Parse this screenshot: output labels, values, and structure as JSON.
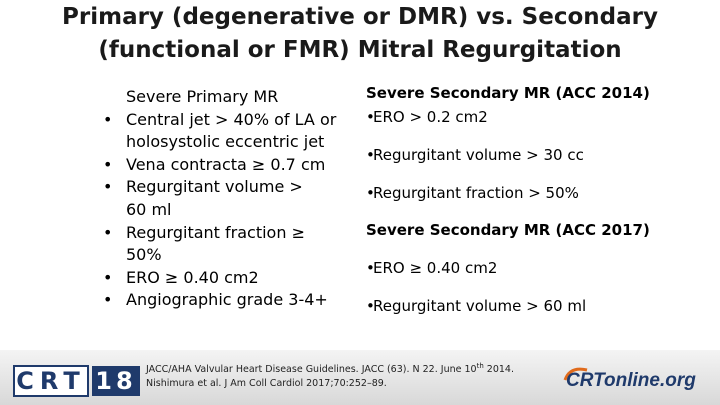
{
  "header": {
    "title_lines": [
      "Primary (degenerative or DMR)  vs. Secondary",
      "(functional or FMR)  Mitral Regurgitation"
    ]
  },
  "left": {
    "heading": "Severe Primary MR",
    "items": [
      "Central jet > 40% of LA or holosystolic eccentric jet",
      "Vena contracta ≥ 0.7 cm",
      "Regurgitant volume > 60 ml",
      "Regurgitant fraction ≥ 50%",
      "ERO ≥ 0.40 cm2",
      "Angiographic grade 3-4+"
    ]
  },
  "right": {
    "sections": [
      {
        "heading": "Severe Secondary MR (ACC 2014)",
        "items": [
          "ERO > 0.2 cm2",
          "Regurgitant volume > 30 cc",
          "Regurgitant fraction > 50%"
        ]
      },
      {
        "heading": "Severe Secondary MR (ACC 2017)",
        "items": [
          "ERO ≥ 0.40 cm2",
          "Regurgitant volume > 60 ml"
        ]
      }
    ]
  },
  "footer": {
    "logo_left": [
      "CRT",
      "18"
    ],
    "citation": [
      "JACC/AHA Valvular Heart Disease Guidelines. JACC (63). N 22. June 10",
      "th",
      " 2014."
    ],
    "citation_line2": "Nishimura et al. J Am Coll Cardiol 2017;70:252–89.",
    "logo_right": "CRTonline.org"
  }
}
